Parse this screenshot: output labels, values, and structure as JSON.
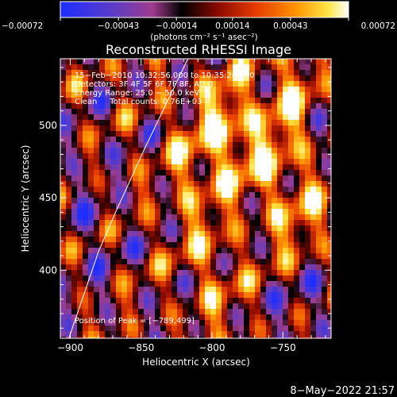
{
  "chart_data": {
    "type": "heatmap",
    "title": "Reconstructed RHESSI Image",
    "xlabel": "Heliocentric X (arcsec)",
    "ylabel": "Heliocentric Y (arcsec)",
    "xlim": [
      -907,
      -716
    ],
    "ylim": [
      353,
      546
    ],
    "x_ticks": [
      -900,
      -850,
      -800,
      -750
    ],
    "y_ticks": [
      400,
      450,
      500
    ],
    "x_tick_labels": [
      "−900",
      "−850",
      "−800",
      "−750"
    ],
    "y_tick_labels": [
      "400",
      "450",
      "500"
    ],
    "colorbar": {
      "min": -0.00072,
      "max": 0.00072,
      "tick_values": [
        -0.00072,
        -0.00043,
        -0.00014,
        0.00014,
        0.00043,
        0.00072
      ],
      "tick_labels": [
        "−0.00072",
        "−0.00043",
        "−0.00014",
        "0.00014",
        "0.00043",
        "0.00072"
      ],
      "units_label": "(photons cm⁻² s⁻¹ asec⁻²)"
    },
    "info_lines": [
      "15−Feb−2010 10:32:56.000 to 10:35:20.000",
      "Detectors: 3F 4F 5F 6F 7F 8F, Att 0",
      "Energy Range: 25.0 − 50.0 keV",
      "Clean     Total counts: 0.76E+03"
    ],
    "peak_label": "Position of Peak = [−789,499]",
    "peak": [
      -789,
      499
    ],
    "limb_curve": [
      [
        -901,
        353
      ],
      [
        -880,
        413
      ],
      [
        -868,
        440
      ],
      [
        -848,
        483
      ],
      [
        -817,
        546
      ]
    ],
    "grid": false
  },
  "footer": {
    "timestamp": "8−May−2022 21:57"
  }
}
